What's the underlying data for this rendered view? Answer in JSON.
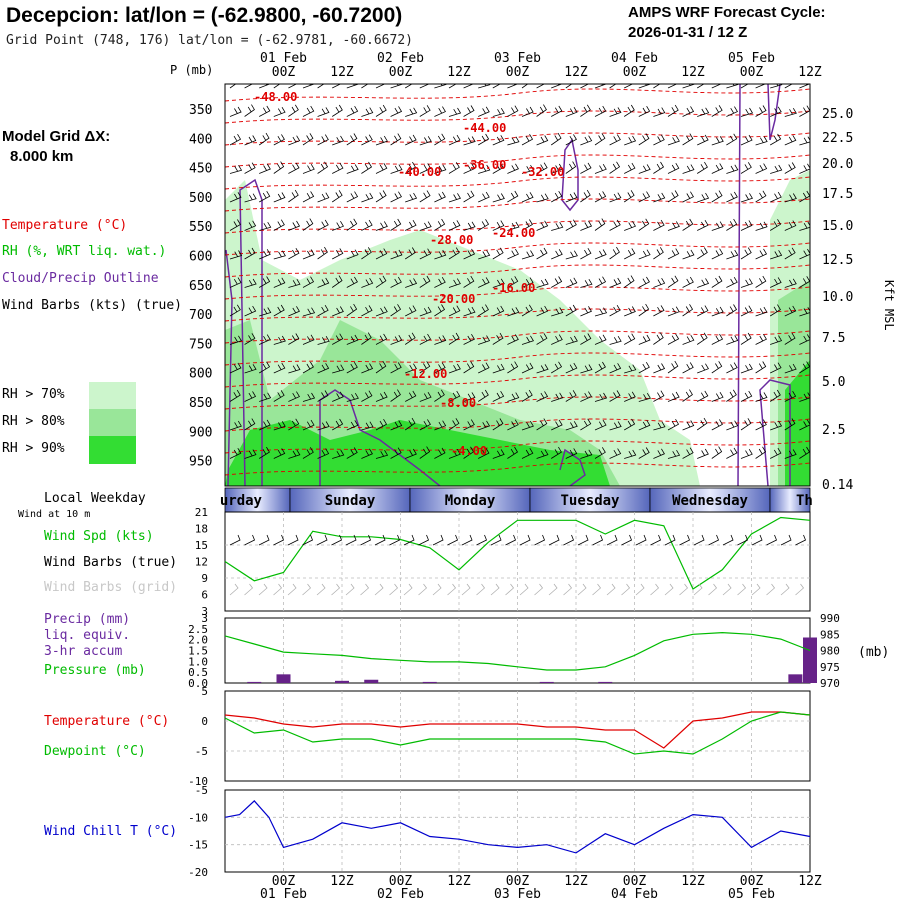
{
  "header": {
    "title": "Decepcion:  lat/lon = (-62.9800, -60.7200)",
    "subtitle": "Grid Point (748, 176) lat/lon = (-62.9781, -60.6672)",
    "model_name": "AMPS WRF Forecast Cycle:",
    "cycle": "2026-01-31 / 12  Z"
  },
  "grid": {
    "label": "Model Grid ΔX:",
    "value": "8.000 km"
  },
  "legend": {
    "temperature": "Temperature (°C)",
    "rh": "RH (%, WRT liq. wat.)",
    "cloud": "Cloud/Precip Outline",
    "wind": "Wind Barbs (kts) (true)",
    "rh70": "RH > 70%",
    "rh80": "RH > 80%",
    "rh90": "RH > 90%",
    "local_weekday": "Local Weekday",
    "wind_at": "Wind at 10 m",
    "wind_spd": "Wind Spd (kts)",
    "wind_barbs_true": "Wind Barbs (true)",
    "wind_barbs_grid": "Wind Barbs (grid)",
    "precip": "Precip (mm)",
    "precip2": "liq. equiv.",
    "precip3": "3-hr accum",
    "pressure": "Pressure (mb)",
    "sfc_temp": "Temperature (°C)",
    "dewpoint": "Dewpoint (°C)",
    "wind_chill": "Wind Chill T (°C)"
  },
  "colors": {
    "temp": "#e00000",
    "rh70": "#ccf5cc",
    "rh80": "#99e699",
    "rh90": "#33dd33",
    "cloud": "#6a2aa0",
    "wind": "#000000",
    "grid_barb": "#b0b0b0",
    "spd": "#00bb00",
    "press": "#00bb00",
    "precip": "#662288",
    "dew": "#00bb00",
    "chill": "#0000cc"
  },
  "chart_data": [
    {
      "type": "heatmap",
      "title": "Upper-air time-height cross section",
      "ylabel": "P (mb)",
      "y2label": "Kft MSL",
      "x_times_top": [
        "00Z",
        "12Z",
        "00Z",
        "12Z",
        "00Z",
        "12Z",
        "00Z",
        "12Z",
        "00Z",
        "12Z"
      ],
      "x_days": [
        "01 Feb",
        "02 Feb",
        "03 Feb",
        "04 Feb",
        "05 Feb"
      ],
      "pressure_ticks": [
        "350",
        "400",
        "450",
        "500",
        "550",
        "600",
        "650",
        "700",
        "750",
        "800",
        "850",
        "900",
        "950"
      ],
      "kft_ticks": [
        "25.0",
        "22.5",
        "20.0",
        "17.5",
        "15.0",
        "12.5",
        "10.0",
        "7.5",
        "5.0",
        "2.5",
        "0.14"
      ],
      "temperature_labels": [
        "-48.00",
        "-44.00",
        "-40.00",
        "-36.00",
        "-32.00",
        "-28.00",
        "-24.00",
        "-20.00",
        "-16.00",
        "-12.00",
        "-8.00",
        "-4.00"
      ]
    },
    {
      "type": "table",
      "title": "Local Weekday",
      "days": [
        "urday",
        "Sunday",
        "Monday",
        "Tuesday",
        "Wednesday",
        "Th"
      ]
    },
    {
      "type": "line",
      "title": "Wind Spd (kts)",
      "ylim": [
        3,
        21
      ],
      "yticks": [
        "21",
        "18",
        "15",
        "12",
        "9",
        "6",
        "3"
      ],
      "x_hours": [
        0,
        6,
        12,
        18,
        24,
        30,
        36,
        42,
        48,
        54,
        60,
        66,
        72,
        78,
        84,
        90,
        96,
        102,
        108,
        114,
        120
      ],
      "series": [
        {
          "name": "Wind Spd (kts)",
          "values": [
            12,
            8.5,
            10,
            17.5,
            16.5,
            16.5,
            16,
            14.5,
            10.5,
            15.5,
            19.5,
            19.5,
            19.5,
            17,
            19.5,
            18.5,
            7,
            10.5,
            17,
            20,
            19.5
          ]
        }
      ]
    },
    {
      "type": "bar",
      "title": "Precip (mm) liq. equiv. 3-hr accum",
      "ylim": [
        0,
        3
      ],
      "yticks": [
        "3",
        "2.5",
        "2.0",
        "1.5",
        "1.0",
        "0.5",
        "0.0"
      ],
      "x_hours": [
        6,
        12,
        18,
        24,
        30,
        36,
        42,
        48,
        54,
        60,
        66,
        72,
        78,
        84,
        90,
        96,
        102,
        108,
        114,
        117,
        120
      ],
      "values": [
        0.05,
        0.4,
        0.0,
        0.1,
        0.15,
        0.0,
        0.05,
        0.0,
        0.0,
        0.0,
        0.05,
        0.0,
        0.05,
        0.0,
        0.0,
        0.0,
        0.0,
        0.0,
        0.0,
        0.4,
        2.1
      ]
    },
    {
      "type": "line",
      "title": "Pressure (mb)",
      "ylim": [
        970,
        990
      ],
      "yticks": [
        "990",
        "985",
        "980",
        "975",
        "970"
      ],
      "x_hours": [
        0,
        6,
        12,
        18,
        24,
        30,
        36,
        42,
        48,
        54,
        60,
        66,
        72,
        78,
        84,
        90,
        96,
        102,
        108,
        114,
        120
      ],
      "series": [
        {
          "name": "Pressure (mb)",
          "values": [
            984.5,
            982,
            979.5,
            979,
            978.5,
            977.5,
            977,
            976.5,
            976.5,
            976,
            975,
            974,
            974,
            975,
            978.5,
            983,
            985,
            985.5,
            985,
            983.5,
            980
          ]
        }
      ]
    },
    {
      "type": "line",
      "title": "Temperature / Dewpoint (°C)",
      "ylim": [
        -10,
        5
      ],
      "yticks": [
        "5",
        "0",
        "-5",
        "-10"
      ],
      "x_hours": [
        0,
        6,
        12,
        18,
        24,
        30,
        36,
        42,
        48,
        54,
        60,
        66,
        72,
        78,
        84,
        90,
        96,
        102,
        108,
        114,
        120
      ],
      "series": [
        {
          "name": "Temperature",
          "values": [
            1,
            0.5,
            -0.5,
            -1,
            -0.5,
            -0.5,
            -1,
            -0.5,
            -0.5,
            -0.5,
            -0.5,
            -1,
            -1,
            -1.5,
            -1.5,
            -4.5,
            0,
            0.5,
            1.5,
            1.5,
            1
          ]
        },
        {
          "name": "Dewpoint",
          "values": [
            0.5,
            -2,
            -1.5,
            -3.5,
            -3,
            -3,
            -4,
            -3,
            -3,
            -3,
            -3,
            -3,
            -3,
            -3.5,
            -5.5,
            -5,
            -5.5,
            -3,
            0,
            1.5,
            1
          ]
        }
      ]
    },
    {
      "type": "line",
      "title": "Wind Chill T (°C)",
      "ylim": [
        -20,
        -5
      ],
      "yticks": [
        "-5",
        "-10",
        "-15",
        "-20"
      ],
      "x_hours": [
        0,
        3,
        6,
        9,
        12,
        18,
        24,
        30,
        36,
        42,
        48,
        54,
        60,
        66,
        72,
        78,
        84,
        90,
        96,
        102,
        108,
        114,
        120
      ],
      "series": [
        {
          "name": "Wind Chill T",
          "values": [
            -10,
            -9.5,
            -7,
            -10,
            -15.5,
            -14,
            -11,
            -12,
            -11,
            -13.5,
            -14,
            -15,
            -15.5,
            -15,
            -16.5,
            -13,
            -15,
            -12,
            -9.5,
            -10,
            -15.5,
            -12.5,
            -13.5
          ]
        }
      ]
    }
  ],
  "bottom_axis": {
    "times": [
      "00Z",
      "12Z",
      "00Z",
      "12Z",
      "00Z",
      "12Z",
      "00Z",
      "12Z",
      "00Z",
      "12Z"
    ],
    "days": [
      "01 Feb",
      "02 Feb",
      "03 Feb",
      "04 Feb",
      "05 Feb"
    ]
  }
}
